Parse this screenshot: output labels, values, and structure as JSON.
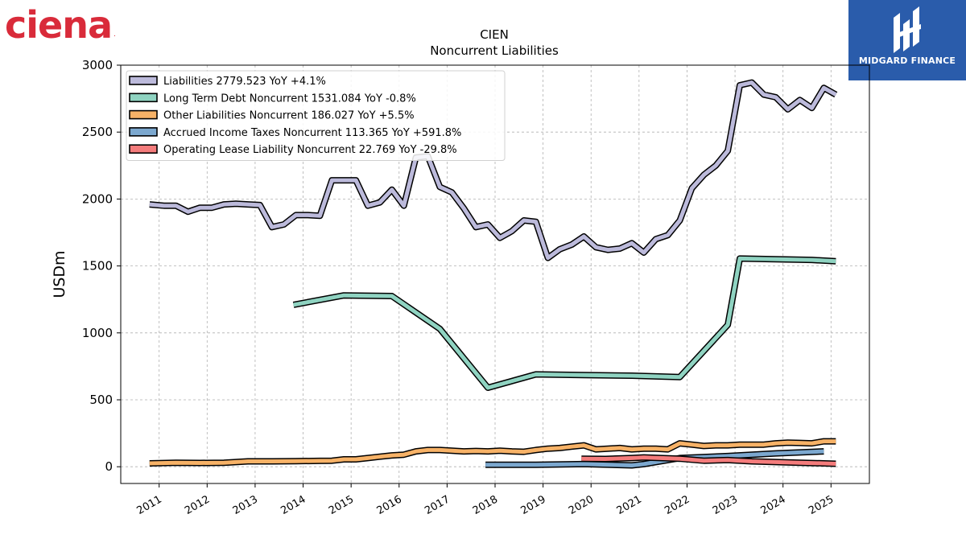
{
  "logos": {
    "left_text": "ciena",
    "left_mark": ".",
    "right_text": "MIDGARD FINANCE"
  },
  "colors": {
    "ciena_red": "#d92b3a",
    "midgard_blue": "#2a5cab"
  },
  "chart_data": {
    "type": "line",
    "title": "CIEN",
    "subtitle": "Noncurrent  Liabilities",
    "ylabel": "USDm",
    "xlabel": "",
    "ylim": [
      -125,
      3000
    ],
    "xlim": [
      2010.2,
      2025.8
    ],
    "yticks": [
      0,
      500,
      1000,
      1500,
      2000,
      2500,
      3000
    ],
    "xticks": [
      2011,
      2012,
      2013,
      2014,
      2015,
      2016,
      2017,
      2018,
      2019,
      2020,
      2021,
      2022,
      2023,
      2024,
      2025
    ],
    "grid": true,
    "legend_position": "top-left",
    "series": [
      {
        "name": "Liabilities  2779.523 YoY +4.1%",
        "color": "#bcbadb",
        "x": [
          2010.8,
          2011.1,
          2011.35,
          2011.6,
          2011.85,
          2012.1,
          2012.35,
          2012.6,
          2012.85,
          2013.1,
          2013.35,
          2013.6,
          2013.85,
          2014.1,
          2014.35,
          2014.6,
          2014.85,
          2015.1,
          2015.35,
          2015.6,
          2015.85,
          2016.1,
          2016.35,
          2016.6,
          2016.85,
          2017.1,
          2017.35,
          2017.6,
          2017.85,
          2018.1,
          2018.35,
          2018.6,
          2018.85,
          2019.1,
          2019.35,
          2019.6,
          2019.85,
          2020.1,
          2020.35,
          2020.6,
          2020.85,
          2021.1,
          2021.35,
          2021.6,
          2021.85,
          2022.1,
          2022.35,
          2022.6,
          2022.85,
          2023.1,
          2023.35,
          2023.6,
          2023.85,
          2024.1,
          2024.35,
          2024.6,
          2024.85,
          2025.1
        ],
        "values": [
          1960,
          1950,
          1950,
          1905,
          1935,
          1935,
          1960,
          1965,
          1960,
          1955,
          1790,
          1810,
          1880,
          1880,
          1875,
          2140,
          2140,
          2140,
          1950,
          1975,
          2070,
          1950,
          2310,
          2320,
          2090,
          2050,
          1930,
          1790,
          1810,
          1710,
          1760,
          1840,
          1830,
          1560,
          1625,
          1660,
          1720,
          1640,
          1620,
          1630,
          1670,
          1600,
          1700,
          1730,
          1840,
          2080,
          2180,
          2250,
          2360,
          2850,
          2870,
          2780,
          2760,
          2670,
          2740,
          2680,
          2830,
          2780
        ]
      },
      {
        "name": "Long Term Debt Noncurrent  1531.084 YoY -0.8%",
        "color": "#8fd3c1",
        "x": [
          2013.8,
          2014.85,
          2015.85,
          2016.85,
          2017.85,
          2018.85,
          2019.85,
          2020.85,
          2021.85,
          2022.85,
          2023.1,
          2023.85,
          2024.6,
          2025.1
        ],
        "values": [
          1210,
          1280,
          1275,
          1030,
          590,
          690,
          685,
          680,
          670,
          1060,
          1555,
          1550,
          1545,
          1535
        ]
      },
      {
        "name": "Other Liabilities Noncurrent  186.027 YoY +5.5%",
        "color": "#f7b267",
        "x": [
          2010.8,
          2011.35,
          2011.85,
          2012.35,
          2012.85,
          2013.35,
          2013.85,
          2014.35,
          2014.6,
          2014.85,
          2015.1,
          2015.35,
          2015.6,
          2015.85,
          2016.1,
          2016.35,
          2016.6,
          2016.85,
          2017.1,
          2017.35,
          2017.6,
          2017.85,
          2018.1,
          2018.35,
          2018.6,
          2018.85,
          2019.1,
          2019.35,
          2019.6,
          2019.85,
          2020.1,
          2020.35,
          2020.6,
          2020.85,
          2021.1,
          2021.35,
          2021.6,
          2021.85,
          2022.1,
          2022.35,
          2022.6,
          2022.85,
          2023.1,
          2023.35,
          2023.6,
          2023.85,
          2024.1,
          2024.35,
          2024.6,
          2024.85,
          2025.1
        ],
        "values": [
          25,
          30,
          28,
          30,
          40,
          40,
          42,
          44,
          45,
          55,
          55,
          65,
          75,
          85,
          90,
          115,
          125,
          125,
          120,
          115,
          118,
          115,
          120,
          115,
          112,
          125,
          135,
          140,
          150,
          160,
          130,
          135,
          140,
          130,
          135,
          135,
          130,
          175,
          165,
          155,
          160,
          160,
          165,
          165,
          165,
          175,
          180,
          178,
          175,
          190,
          190
        ]
      },
      {
        "name": "Accrued Income Taxes Noncurrent  113.365 YoY +591.8%",
        "color": "#7ca8cf",
        "x": [
          2017.8,
          2018.85,
          2019.85,
          2020.85,
          2021.1,
          2021.85,
          2022.85,
          2023.85,
          2024.85
        ],
        "values": [
          15,
          15,
          20,
          10,
          20,
          65,
          80,
          100,
          115
        ]
      },
      {
        "name": "Operating Lease Liability Noncurrent  22.769 YoY -29.8%",
        "color": "#f47c7c",
        "x": [
          2019.8,
          2020.3,
          2020.85,
          2021.1,
          2021.85,
          2022.35,
          2022.85,
          2023.35,
          2023.85,
          2024.35,
          2024.85,
          2025.1
        ],
        "values": [
          60,
          58,
          65,
          70,
          60,
          45,
          50,
          40,
          35,
          30,
          25,
          22
        ]
      }
    ]
  }
}
